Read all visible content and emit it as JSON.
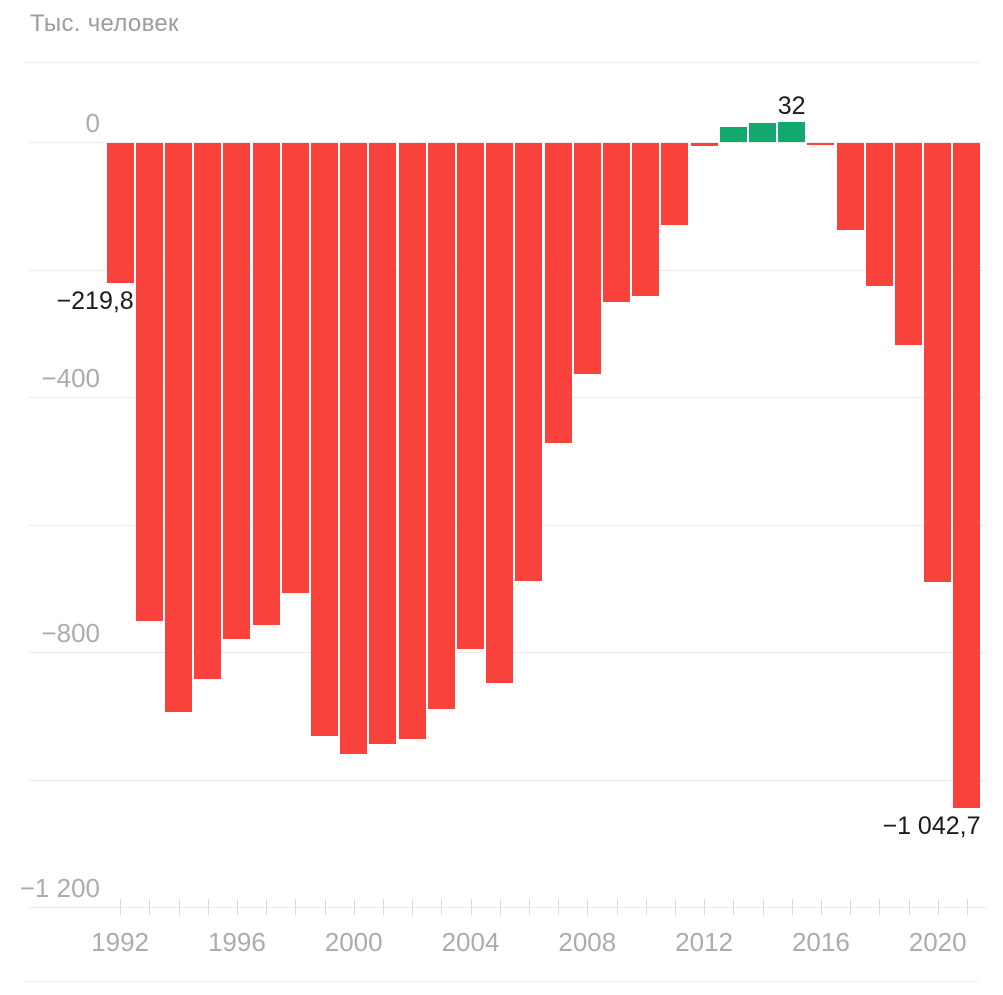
{
  "chart_data": {
    "type": "bar",
    "title": "Тыс. человек",
    "subtitle": "",
    "xlabel": "",
    "ylabel": "Тыс. человек",
    "categories": [
      1992,
      1993,
      1994,
      1995,
      1996,
      1997,
      1998,
      1999,
      2000,
      2001,
      2002,
      2003,
      2004,
      2005,
      2006,
      2007,
      2008,
      2009,
      2010,
      2011,
      2012,
      2013,
      2014,
      2015,
      2016,
      2017,
      2018,
      2019,
      2020,
      2021
    ],
    "values": [
      -219.8,
      -750.3,
      -893.2,
      -840.0,
      -777.6,
      -755.9,
      -705.4,
      -929.6,
      -958.5,
      -943.3,
      -935.3,
      -888.5,
      -792.9,
      -846.5,
      -687.1,
      -470.3,
      -362.0,
      -248.9,
      -239.6,
      -129.1,
      -4.2,
      24.0,
      30.3,
      32.0,
      -2.3,
      -135.8,
      -224.6,
      -317.2,
      -688.7,
      -1042.7
    ],
    "ylim": [
      -1200,
      100
    ],
    "grid_on": true,
    "grid_step": 200,
    "legend": null,
    "y_axis": [
      {
        "value": 0,
        "label": "0"
      },
      {
        "value": -400,
        "label": "−400"
      },
      {
        "value": -800,
        "label": "−800"
      },
      {
        "value": -1200,
        "label": "−1 200"
      }
    ],
    "x_axis": [
      {
        "year": 1992,
        "label": "1992"
      },
      {
        "year": 1996,
        "label": "1996"
      },
      {
        "year": 2000,
        "label": "2000"
      },
      {
        "year": 2004,
        "label": "2004"
      },
      {
        "year": 2008,
        "label": "2008"
      },
      {
        "year": 2012,
        "label": "2012"
      },
      {
        "year": 2016,
        "label": "2016"
      },
      {
        "year": 2020,
        "label": "2020"
      }
    ],
    "annotations": [
      {
        "year": 1992,
        "label": "−219,8",
        "position": "below"
      },
      {
        "year": 2015,
        "label": "32",
        "position": "above"
      },
      {
        "year": 2021,
        "label": "−1 042,7",
        "position": "below"
      }
    ],
    "colors": {
      "negative": "#F9423C",
      "positive": "#12A96E",
      "grid": "#ECECEC",
      "tick": "#DBDBDB",
      "axis_text": "#ACACAC",
      "title_text": "#9C9C9C",
      "annotation_text": "#1C1C1C",
      "background": "#FFFFFF"
    }
  }
}
